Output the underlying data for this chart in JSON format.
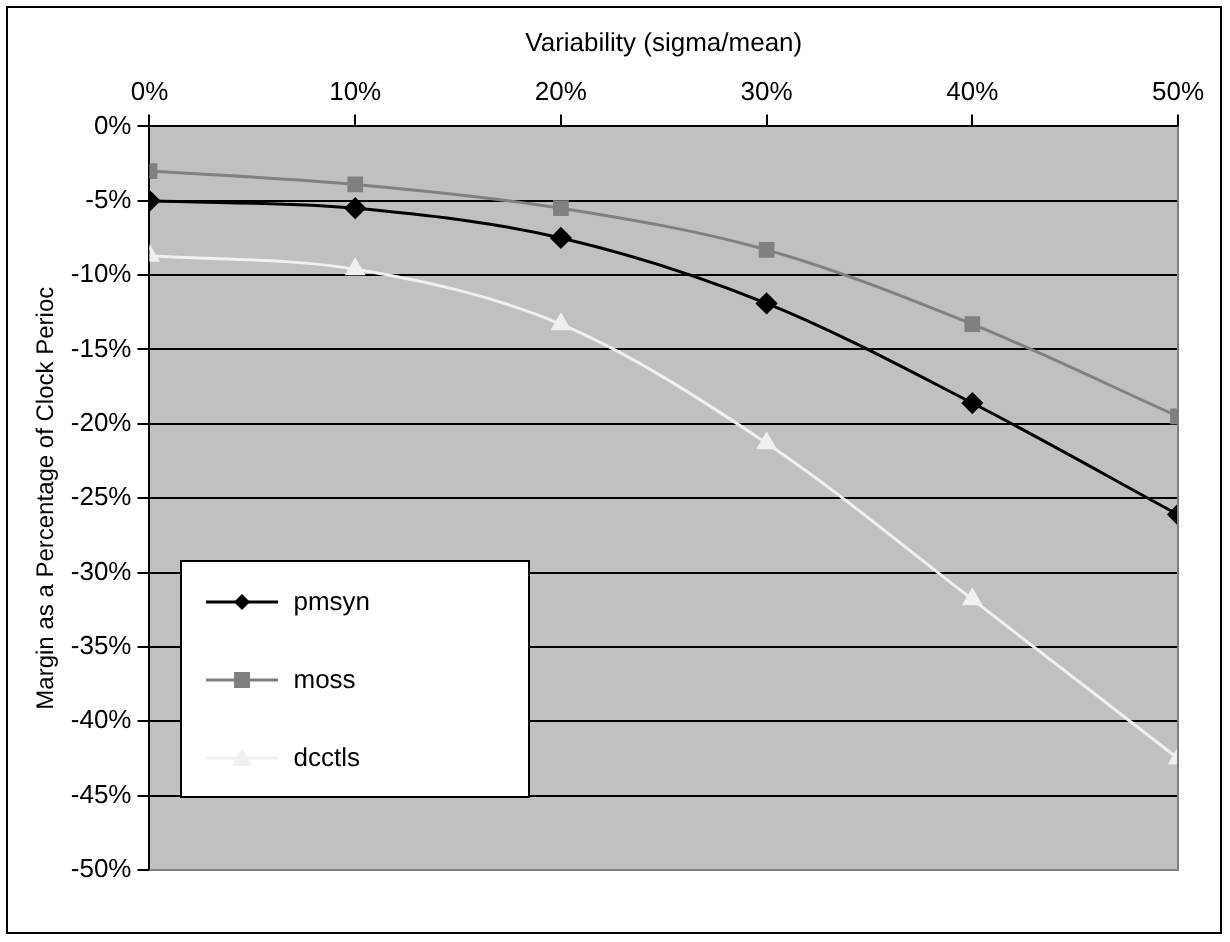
{
  "chart_data": {
    "type": "line",
    "xlabel": "Variability (sigma/mean)",
    "ylabel": "Margin as a Percentage of Clock Perioc",
    "x": [
      0,
      10,
      20,
      30,
      40,
      50
    ],
    "xlim": [
      0,
      50
    ],
    "xticks": [
      {
        "value": 0,
        "label": "0%"
      },
      {
        "value": 10,
        "label": "10%"
      },
      {
        "value": 20,
        "label": "20%"
      },
      {
        "value": 30,
        "label": "30%"
      },
      {
        "value": 40,
        "label": "40%"
      },
      {
        "value": 50,
        "label": "50%"
      }
    ],
    "ylim": [
      -50,
      0
    ],
    "yticks": [
      {
        "value": 0,
        "label": "0%"
      },
      {
        "value": -5,
        "label": "-5%"
      },
      {
        "value": -10,
        "label": "-10%"
      },
      {
        "value": -15,
        "label": "-15%"
      },
      {
        "value": -20,
        "label": "-20%"
      },
      {
        "value": -25,
        "label": "-25%"
      },
      {
        "value": -30,
        "label": "-30%"
      },
      {
        "value": -35,
        "label": "-35%"
      },
      {
        "value": -40,
        "label": "-40%"
      },
      {
        "value": -45,
        "label": "-45%"
      },
      {
        "value": -50,
        "label": "-50%"
      }
    ],
    "grid": "y",
    "legend": "bottom left",
    "line_style": "solid",
    "series": [
      {
        "name": "pmsyn",
        "color": "#000000",
        "marker": "diamond",
        "values": [
          -5.0,
          -5.5,
          -7.5,
          -11.9,
          -18.6,
          -26.1
        ]
      },
      {
        "name": "moss",
        "color": "#808080",
        "marker": "square",
        "values": [
          -3.0,
          -3.9,
          -5.5,
          -8.3,
          -13.3,
          -19.5
        ]
      },
      {
        "name": "dcctls",
        "color": "#f0f0f0",
        "marker": "triangle",
        "values": [
          -8.7,
          -9.6,
          -13.3,
          -21.3,
          -31.8,
          -42.5
        ]
      }
    ]
  }
}
